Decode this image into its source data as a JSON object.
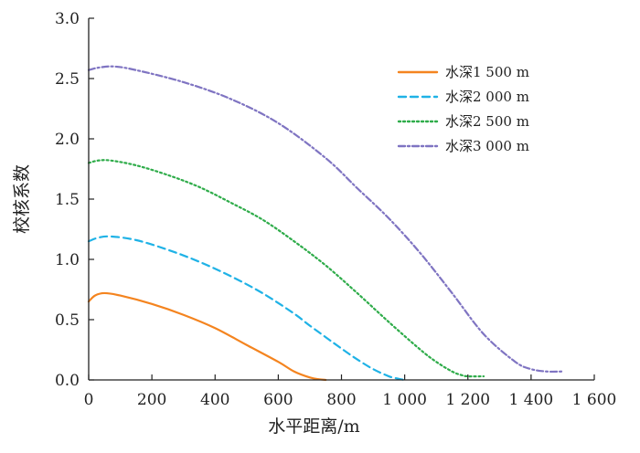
{
  "chart_data": {
    "type": "line",
    "xlabel": "水平距离/m",
    "ylabel": "校核系数",
    "xlim": [
      0,
      1600
    ],
    "ylim": [
      0,
      3.0
    ],
    "x_ticks": [
      0,
      200,
      400,
      600,
      800,
      1000,
      1200,
      1400,
      1600
    ],
    "x_tick_labels": [
      "0",
      "200",
      "400",
      "600",
      "800",
      "1 000",
      "1 200",
      "1 400",
      "1 600"
    ],
    "y_ticks": [
      0,
      0.5,
      1.0,
      1.5,
      2.0,
      2.5,
      3.0
    ],
    "y_tick_labels": [
      "0.0",
      "0.5",
      "1.0",
      "1.5",
      "2.0",
      "2.5",
      "3.0"
    ],
    "grid": false,
    "legend_position": "top-right",
    "series": [
      {
        "name": "水深1 500 m",
        "color": "#f4841f",
        "dash": "solid",
        "x": [
          0,
          20,
          50,
          100,
          200,
          300,
          400,
          500,
          600,
          650,
          700,
          730,
          750
        ],
        "y": [
          0.65,
          0.7,
          0.72,
          0.7,
          0.63,
          0.54,
          0.43,
          0.29,
          0.15,
          0.07,
          0.02,
          0.005,
          0.0
        ]
      },
      {
        "name": "水深2 000 m",
        "color": "#1fb2e6",
        "dash": "dashed",
        "x": [
          0,
          30,
          70,
          150,
          250,
          350,
          450,
          550,
          650,
          700,
          800,
          850,
          900,
          950,
          980,
          1000
        ],
        "y": [
          1.15,
          1.18,
          1.19,
          1.16,
          1.08,
          0.98,
          0.86,
          0.72,
          0.55,
          0.45,
          0.26,
          0.17,
          0.09,
          0.03,
          0.01,
          0.0
        ]
      },
      {
        "name": "水深2 500 m",
        "color": "#2fac4a",
        "dash": "dotted",
        "x": [
          0,
          30,
          70,
          150,
          250,
          350,
          450,
          550,
          650,
          750,
          850,
          950,
          1050,
          1100,
          1150,
          1180,
          1200,
          1250
        ],
        "y": [
          1.8,
          1.82,
          1.82,
          1.78,
          1.7,
          1.6,
          1.47,
          1.33,
          1.15,
          0.95,
          0.72,
          0.48,
          0.25,
          0.15,
          0.07,
          0.04,
          0.03,
          0.03
        ]
      },
      {
        "name": "水深3 000 m",
        "color": "#7f74c2",
        "dash": "dashdot",
        "x": [
          0,
          30,
          80,
          150,
          300,
          450,
          600,
          750,
          850,
          950,
          1050,
          1150,
          1250,
          1350,
          1400,
          1450,
          1500
        ],
        "y": [
          2.57,
          2.59,
          2.6,
          2.57,
          2.47,
          2.33,
          2.13,
          1.84,
          1.59,
          1.34,
          1.05,
          0.72,
          0.38,
          0.15,
          0.09,
          0.07,
          0.07
        ]
      }
    ]
  }
}
